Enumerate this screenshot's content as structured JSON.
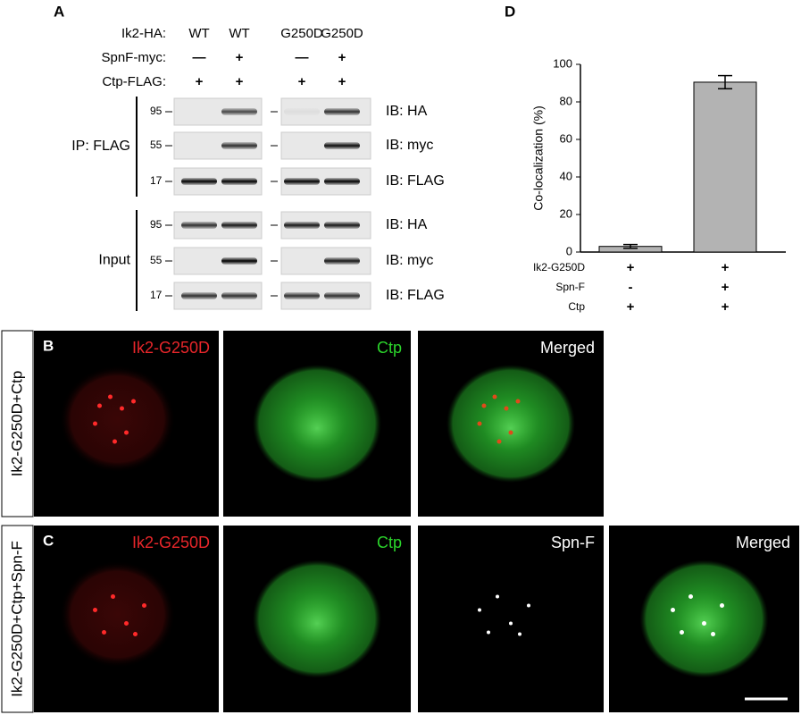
{
  "panel_a": {
    "letter": "A",
    "header_rows": [
      {
        "label": "Ik2-HA:",
        "lanes": [
          "WT",
          "WT",
          "G250D",
          "G250D"
        ]
      },
      {
        "label": "SpnF-myc:",
        "lanes": [
          "—",
          "+",
          "—",
          "+"
        ]
      },
      {
        "label": "Ctp-FLAG:",
        "lanes": [
          "+",
          "+",
          "+",
          "+"
        ]
      }
    ],
    "groups": [
      {
        "label": "IP: FLAG",
        "blots": [
          {
            "marker": "95",
            "antibody": "IB: HA"
          },
          {
            "marker": "55",
            "antibody": "IB: myc"
          },
          {
            "marker": "17",
            "antibody": "IB: FLAG"
          }
        ]
      },
      {
        "label": "Input",
        "blots": [
          {
            "marker": "95",
            "antibody": "IB: HA"
          },
          {
            "marker": "55",
            "antibody": "IB: myc"
          },
          {
            "marker": "17",
            "antibody": "IB: FLAG"
          }
        ]
      }
    ]
  },
  "panel_b": {
    "letter": "B",
    "side_label": "Ik2-G250D+Ctp",
    "images": [
      {
        "label": "Ik2-G250D",
        "color": "#e8262a"
      },
      {
        "label": "Ctp",
        "color": "#2bd42b"
      },
      {
        "label": "Merged",
        "color": "#ffffff"
      }
    ]
  },
  "panel_c": {
    "letter": "C",
    "side_label": "Ik2-G250D+Ctp+Spn-F",
    "images": [
      {
        "label": "Ik2-G250D",
        "color": "#e8262a"
      },
      {
        "label": "Ctp",
        "color": "#2bd42b"
      },
      {
        "label": "Spn-F",
        "color": "#ffffff"
      },
      {
        "label": "Merged",
        "color": "#ffffff"
      }
    ]
  },
  "chart_data": {
    "type": "bar",
    "letter": "D",
    "ylabel": "Co-localization (%)",
    "categories": [
      null,
      null
    ],
    "values": [
      3,
      90.5
    ],
    "errors": [
      1,
      3.5
    ],
    "color": "#b3b3b3",
    "ylim": [
      0,
      100
    ],
    "yticks": [
      0,
      20,
      40,
      60,
      80,
      100
    ],
    "condition_rows": [
      {
        "label": "Ik2-G250D",
        "values": [
          "+",
          "+"
        ]
      },
      {
        "label": "Spn-F",
        "values": [
          "-",
          "+"
        ]
      },
      {
        "label": "Ctp",
        "values": [
          "+",
          "+"
        ]
      }
    ]
  }
}
